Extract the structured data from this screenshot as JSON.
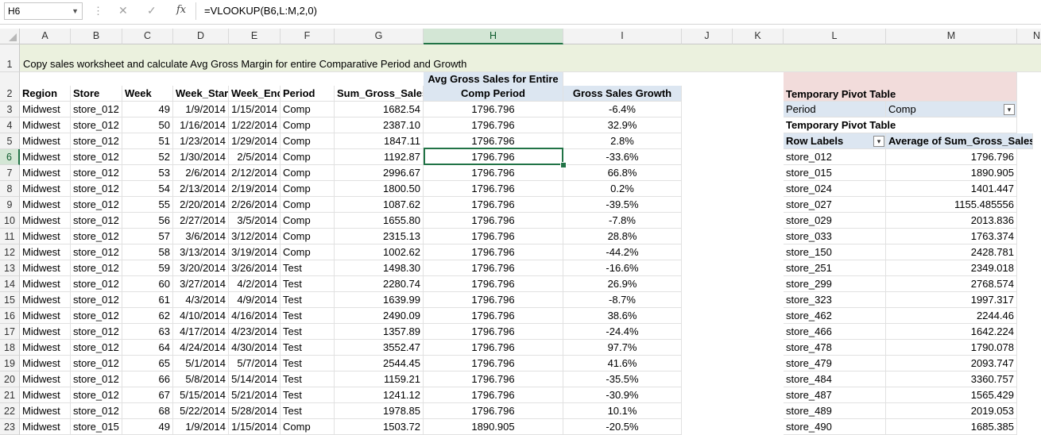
{
  "formula_bar": {
    "name_box": "H6",
    "cancel_icon": "✕",
    "enter_icon": "✓",
    "fx_label": "fx",
    "formula": "=VLOOKUP(B6,L:M,2,0)"
  },
  "columns": [
    "A",
    "B",
    "C",
    "D",
    "E",
    "F",
    "G",
    "H",
    "I",
    "J",
    "K",
    "L",
    "M",
    "N"
  ],
  "selected_column": "H",
  "selected_row": "6",
  "row_numbers": [
    "1",
    "2",
    "3",
    "4",
    "5",
    "6",
    "7",
    "8",
    "9",
    "10",
    "11",
    "12",
    "13",
    "14",
    "15",
    "16",
    "17",
    "18",
    "19",
    "20",
    "21",
    "22",
    "23"
  ],
  "title_row": "Copy sales worksheet and calculate Avg Gross Margin for entire Comparative Period and Growth",
  "headers": {
    "region": "Region",
    "store": "Store",
    "week": "Week",
    "week_start": "Week_Star",
    "week_end": "Week_End",
    "period": "Period",
    "sum_gross_sales": "Sum_Gross_Sales",
    "avg_line1": "Avg Gross Sales for Entire",
    "avg_line2": "Comp Period",
    "growth": "Gross Sales Growth"
  },
  "rows": [
    [
      "Midwest",
      "store_012",
      "49",
      "1/9/2014",
      "1/15/2014",
      "Comp",
      "1682.54",
      "1796.796",
      "-6.4%"
    ],
    [
      "Midwest",
      "store_012",
      "50",
      "1/16/2014",
      "1/22/2014",
      "Comp",
      "2387.10",
      "1796.796",
      "32.9%"
    ],
    [
      "Midwest",
      "store_012",
      "51",
      "1/23/2014",
      "1/29/2014",
      "Comp",
      "1847.11",
      "1796.796",
      "2.8%"
    ],
    [
      "Midwest",
      "store_012",
      "52",
      "1/30/2014",
      "2/5/2014",
      "Comp",
      "1192.87",
      "1796.796",
      "-33.6%"
    ],
    [
      "Midwest",
      "store_012",
      "53",
      "2/6/2014",
      "2/12/2014",
      "Comp",
      "2996.67",
      "1796.796",
      "66.8%"
    ],
    [
      "Midwest",
      "store_012",
      "54",
      "2/13/2014",
      "2/19/2014",
      "Comp",
      "1800.50",
      "1796.796",
      "0.2%"
    ],
    [
      "Midwest",
      "store_012",
      "55",
      "2/20/2014",
      "2/26/2014",
      "Comp",
      "1087.62",
      "1796.796",
      "-39.5%"
    ],
    [
      "Midwest",
      "store_012",
      "56",
      "2/27/2014",
      "3/5/2014",
      "Comp",
      "1655.80",
      "1796.796",
      "-7.8%"
    ],
    [
      "Midwest",
      "store_012",
      "57",
      "3/6/2014",
      "3/12/2014",
      "Comp",
      "2315.13",
      "1796.796",
      "28.8%"
    ],
    [
      "Midwest",
      "store_012",
      "58",
      "3/13/2014",
      "3/19/2014",
      "Comp",
      "1002.62",
      "1796.796",
      "-44.2%"
    ],
    [
      "Midwest",
      "store_012",
      "59",
      "3/20/2014",
      "3/26/2014",
      "Test",
      "1498.30",
      "1796.796",
      "-16.6%"
    ],
    [
      "Midwest",
      "store_012",
      "60",
      "3/27/2014",
      "4/2/2014",
      "Test",
      "2280.74",
      "1796.796",
      "26.9%"
    ],
    [
      "Midwest",
      "store_012",
      "61",
      "4/3/2014",
      "4/9/2014",
      "Test",
      "1639.99",
      "1796.796",
      "-8.7%"
    ],
    [
      "Midwest",
      "store_012",
      "62",
      "4/10/2014",
      "4/16/2014",
      "Test",
      "2490.09",
      "1796.796",
      "38.6%"
    ],
    [
      "Midwest",
      "store_012",
      "63",
      "4/17/2014",
      "4/23/2014",
      "Test",
      "1357.89",
      "1796.796",
      "-24.4%"
    ],
    [
      "Midwest",
      "store_012",
      "64",
      "4/24/2014",
      "4/30/2014",
      "Test",
      "3552.47",
      "1796.796",
      "97.7%"
    ],
    [
      "Midwest",
      "store_012",
      "65",
      "5/1/2014",
      "5/7/2014",
      "Test",
      "2544.45",
      "1796.796",
      "41.6%"
    ],
    [
      "Midwest",
      "store_012",
      "66",
      "5/8/2014",
      "5/14/2014",
      "Test",
      "1159.21",
      "1796.796",
      "-35.5%"
    ],
    [
      "Midwest",
      "store_012",
      "67",
      "5/15/2014",
      "5/21/2014",
      "Test",
      "1241.12",
      "1796.796",
      "-30.9%"
    ],
    [
      "Midwest",
      "store_012",
      "68",
      "5/22/2014",
      "5/28/2014",
      "Test",
      "1978.85",
      "1796.796",
      "10.1%"
    ],
    [
      "Midwest",
      "store_015",
      "49",
      "1/9/2014",
      "1/15/2014",
      "Comp",
      "1503.72",
      "1890.905",
      "-20.5%"
    ]
  ],
  "pivot": {
    "title": "Temporary Pivot Table",
    "filter_label": "Period",
    "filter_value": "Comp",
    "title2": "Temporary Pivot Table",
    "row_labels": "Row Labels",
    "value_header": "Average of Sum_Gross_Sales",
    "items": [
      [
        "store_012",
        "1796.796"
      ],
      [
        "store_015",
        "1890.905"
      ],
      [
        "store_024",
        "1401.447"
      ],
      [
        "store_027",
        "1155.485556"
      ],
      [
        "store_029",
        "2013.836"
      ],
      [
        "store_033",
        "1763.374"
      ],
      [
        "store_150",
        "2428.781"
      ],
      [
        "store_251",
        "2349.018"
      ],
      [
        "store_299",
        "2768.574"
      ],
      [
        "store_323",
        "1997.317"
      ],
      [
        "store_462",
        "2244.46"
      ],
      [
        "store_466",
        "1642.224"
      ],
      [
        "store_478",
        "1790.078"
      ],
      [
        "store_479",
        "2093.747"
      ],
      [
        "store_484",
        "3360.757"
      ],
      [
        "store_487",
        "1565.429"
      ],
      [
        "store_489",
        "2019.053"
      ],
      [
        "store_490",
        "1685.385"
      ]
    ]
  },
  "colors": {
    "accent": "#217346",
    "title_fill": "#ebf1de",
    "blue_header_fill": "#dce6f1",
    "pink_header_fill": "#f2dcdb"
  }
}
